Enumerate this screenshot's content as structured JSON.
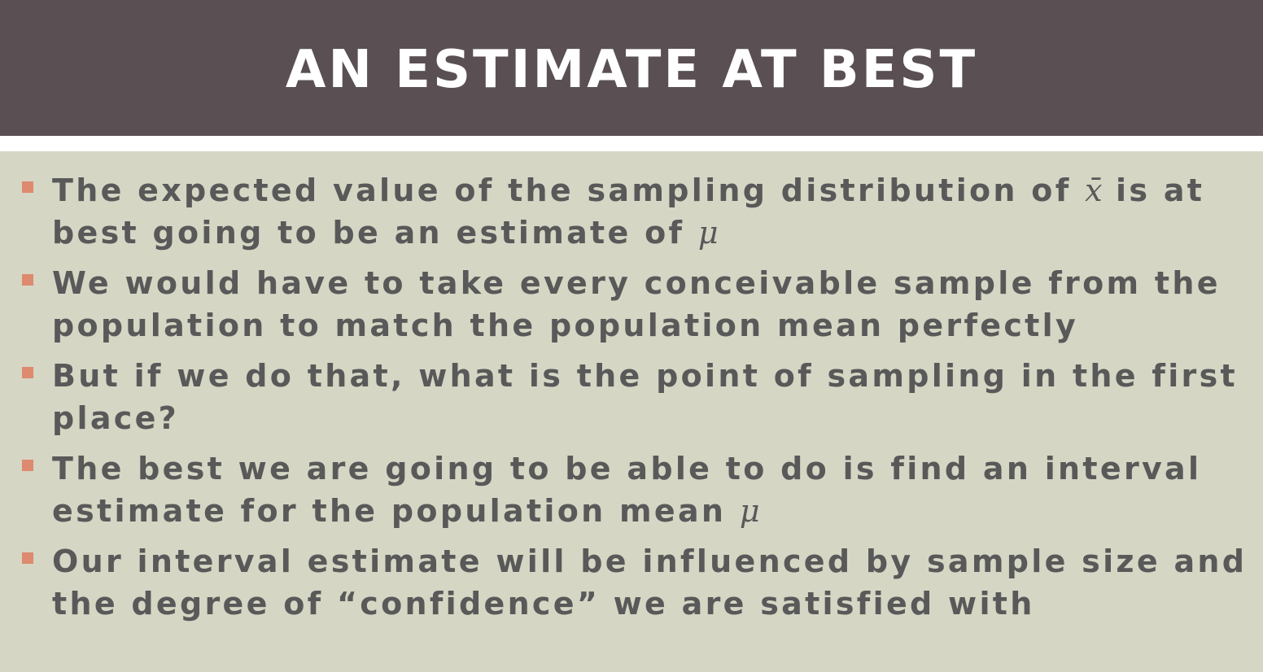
{
  "slide": {
    "title": "AN ESTIMATE AT BEST",
    "colors": {
      "title_bar": "#5a5054",
      "title_text": "#ffffff",
      "content_background": "#d5d6c4",
      "body_text": "#595959",
      "bullet_marker": "#dd8a6f"
    },
    "bullets": [
      {
        "text_before": "The expected value of the sampling distribution of",
        "symbol": "x̄",
        "text_after": "is at best going to be an estimate of",
        "symbol2": "μ"
      },
      {
        "text": "We would have to take every conceivable sample from the population to match the population mean perfectly"
      },
      {
        "text": "But if we do that, what is the point of sampling in the first place?"
      },
      {
        "text": "The best we are going to be able to do is find an interval estimate for the population mean",
        "symbol": "μ"
      },
      {
        "text": "Our interval estimate will be influenced by sample size and the degree of “confidence” we are satisfied with"
      }
    ]
  }
}
